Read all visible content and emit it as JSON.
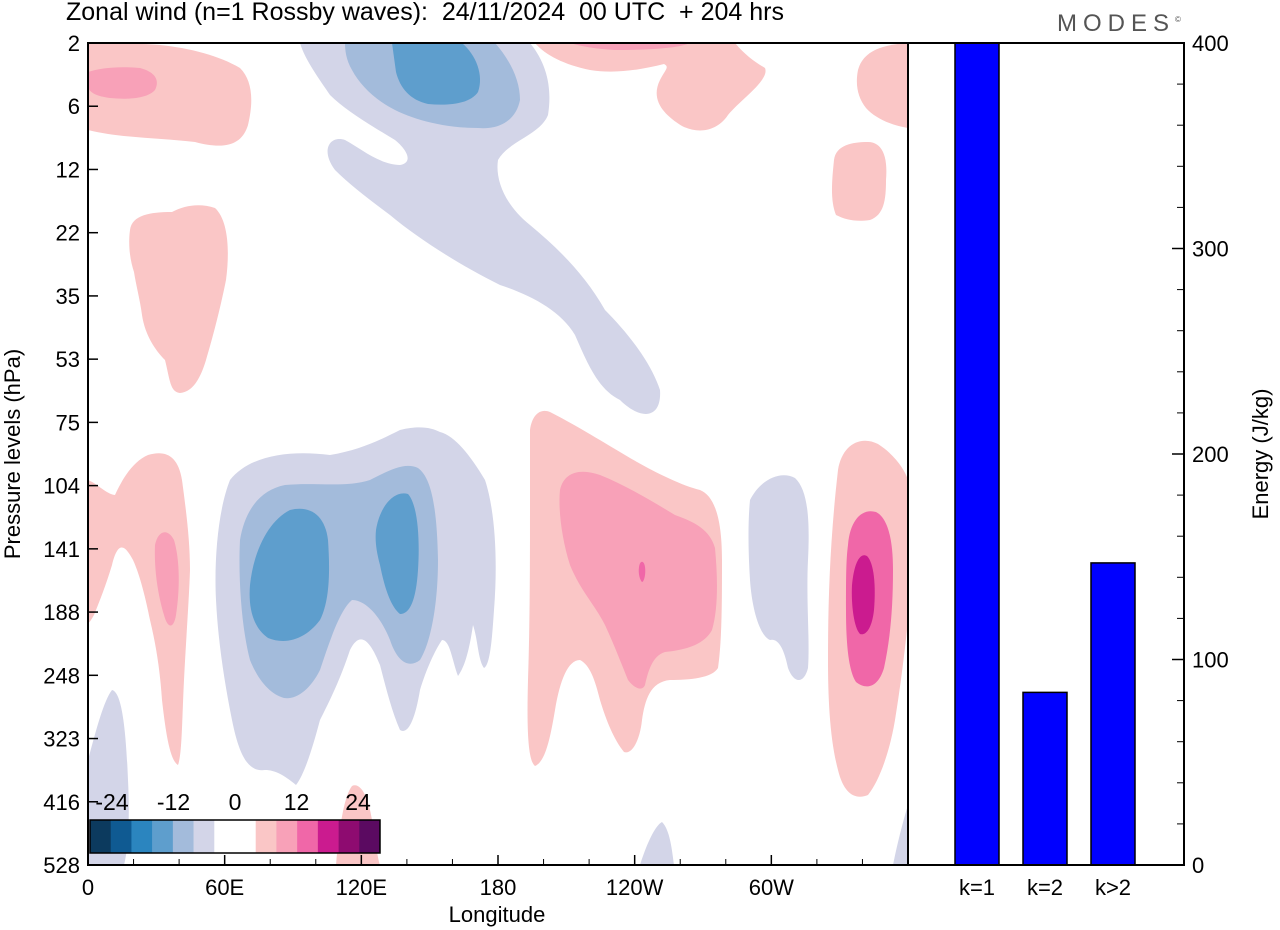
{
  "header": {
    "title": "Zonal wind (n=1 Rossby waves):  24/11/2024  00 UTC  + 204 hrs",
    "logo": "MODES"
  },
  "chart_data": [
    {
      "type": "heatmap",
      "title": "Zonal wind (n=1 Rossby waves):  24/11/2024  00 UTC  + 204 hrs",
      "xlabel": "Longitude",
      "ylabel": "Pressure levels (hPa)",
      "x_ticks": [
        "0",
        "60E",
        "120E",
        "180",
        "120W",
        "60W"
      ],
      "y_ticks": [
        "2",
        "6",
        "12",
        "22",
        "35",
        "53",
        "75",
        "104",
        "141",
        "188",
        "248",
        "323",
        "416",
        "528"
      ],
      "colorbar": {
        "tick_labels": [
          "-24",
          "-12",
          "0",
          "12",
          "24"
        ],
        "colors": [
          "#0c3a5e",
          "#0f5a92",
          "#2b85bf",
          "#5e9ecd",
          "#a3bbdb",
          "#d3d5e8",
          "#ffffff",
          "#ffffff",
          "#fac6c6",
          "#f8a1b8",
          "#f067a8",
          "#cb1b8f",
          "#8e0b70",
          "#5b0a61"
        ]
      },
      "regions": [
        {
          "sign": "positive",
          "level": 1,
          "color": "#fac6c6"
        },
        {
          "sign": "positive",
          "level": 2,
          "color": "#f8a1b8"
        },
        {
          "sign": "positive",
          "level": 3,
          "color": "#f067a8"
        },
        {
          "sign": "positive",
          "level": 4,
          "color": "#cb1b8f"
        },
        {
          "sign": "negative",
          "level": 1,
          "color": "#d3d5e8"
        },
        {
          "sign": "negative",
          "level": 2,
          "color": "#a3bbdb"
        },
        {
          "sign": "negative",
          "level": 3,
          "color": "#5e9ecd"
        }
      ]
    },
    {
      "type": "bar",
      "categories": [
        "k=1",
        "k=2",
        "k>2"
      ],
      "values": [
        400,
        84,
        147
      ],
      "ylabel": "Energy (J/kg)",
      "ylim": [
        0,
        400
      ],
      "y_ticks": [
        0,
        100,
        200,
        300,
        400
      ],
      "bar_color": "#0000ff"
    }
  ]
}
